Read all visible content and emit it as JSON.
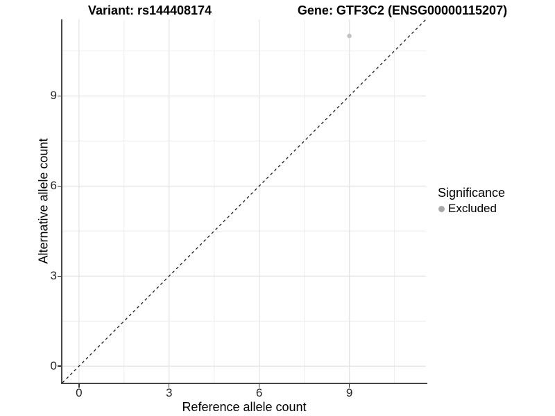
{
  "titles": {
    "left": "Variant: rs144408174",
    "right": "Gene: GTF3C2 (ENSG00000115207)"
  },
  "legend": {
    "title": "Significance",
    "items": [
      {
        "label": "Excluded",
        "color": "#a8a8a8"
      }
    ]
  },
  "chart_data": {
    "type": "scatter",
    "title": "Variant: rs144408174  /  Gene: GTF3C2 (ENSG00000115207)",
    "xlabel": "Reference allele count",
    "ylabel": "Alternative allele count",
    "xlim": [
      -0.55,
      11.55
    ],
    "ylim": [
      -0.55,
      11.55
    ],
    "x_ticks": [
      0,
      3,
      6,
      9
    ],
    "y_ticks": [
      0,
      3,
      6,
      9
    ],
    "x_minor_ticks": [
      1.5,
      4.5,
      7.5,
      10.5
    ],
    "y_minor_ticks": [
      1.5,
      4.5,
      7.5,
      10.5
    ],
    "grid": true,
    "legend_position": "right",
    "series": [
      {
        "name": "Excluded",
        "points": [
          {
            "x": 9,
            "y": 11
          }
        ],
        "point_color": "#c2c2c2",
        "point_radius": 3.3
      }
    ],
    "reference_line": {
      "kind": "identity y=x",
      "style": "dashed",
      "color": "#1a1a1a",
      "x1": -0.55,
      "y1": -0.55,
      "x2": 11.55,
      "y2": 11.55
    },
    "colors": {
      "grid_major": "#e4e4e4",
      "grid_minor": "#efefef",
      "axis_line": "#474747",
      "tick_text": "#262626"
    }
  }
}
